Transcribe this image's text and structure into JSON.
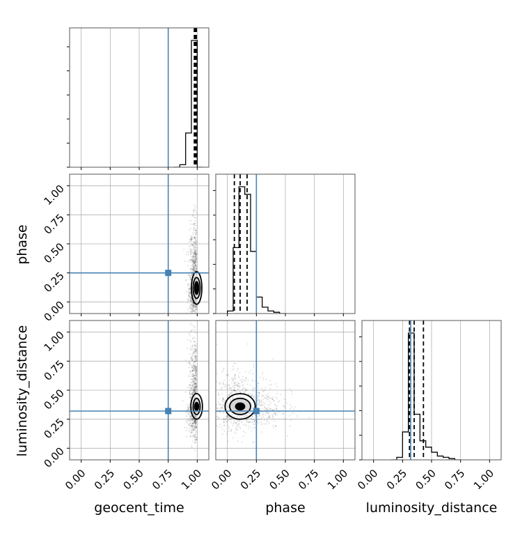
{
  "chart_data": {
    "type": "corner",
    "parameters": [
      "geocent_time",
      "phase",
      "luminosity_distance"
    ],
    "axis_range": [
      -0.1,
      1.1
    ],
    "ticks": [
      0.0,
      0.25,
      0.5,
      0.75,
      1.0
    ],
    "tick_labels": [
      "0.00",
      "0.25",
      "0.50",
      "0.75",
      "1.00"
    ],
    "grid": true,
    "truth": {
      "geocent_time": 0.75,
      "phase": 0.25,
      "luminosity_distance": 0.32
    },
    "truth_color": "#4682b4",
    "histograms": [
      {
        "parameter": "geocent_time",
        "bin_edges": [
          0.8,
          0.85,
          0.9,
          0.95,
          1.0,
          1.05
        ],
        "counts": [
          0.0,
          0.02,
          0.27,
          1.0,
          0.0
        ],
        "quantiles": [
          0.975,
          0.985,
          0.993
        ]
      },
      {
        "parameter": "phase",
        "bin_edges": [
          0.0,
          0.05,
          0.1,
          0.15,
          0.2,
          0.25,
          0.3,
          0.35,
          0.4,
          0.45,
          0.5
        ],
        "counts": [
          0.02,
          0.52,
          1.0,
          0.94,
          0.49,
          0.13,
          0.05,
          0.02,
          0.01,
          0.0
        ],
        "quantiles": [
          0.06,
          0.11,
          0.17
        ]
      },
      {
        "parameter": "luminosity_distance",
        "bin_edges": [
          0.15,
          0.2,
          0.25,
          0.3,
          0.35,
          0.4,
          0.45,
          0.5,
          0.55,
          0.6,
          0.65,
          0.7,
          0.75
        ],
        "counts": [
          0.0,
          0.02,
          0.22,
          1.0,
          0.36,
          0.15,
          0.1,
          0.06,
          0.03,
          0.02,
          0.01,
          0.0
        ],
        "quantiles": [
          0.31,
          0.35,
          0.43
        ]
      }
    ],
    "scatter_panels": [
      {
        "x": "geocent_time",
        "y": "phase",
        "center": [
          0.995,
          0.12
        ],
        "core_ellipse": {
          "rx": 0.018,
          "ry": 0.055
        },
        "contour_ellipses": [
          {
            "rx": 0.03,
            "ry": 0.09
          },
          {
            "rx": 0.045,
            "ry": 0.14
          }
        ],
        "spread": {
          "sx": 0.035,
          "sy": 0.11
        }
      },
      {
        "x": "geocent_time",
        "y": "luminosity_distance",
        "center": [
          0.995,
          0.36
        ],
        "core_ellipse": {
          "rx": 0.018,
          "ry": 0.035
        },
        "contour_ellipses": [
          {
            "rx": 0.03,
            "ry": 0.07
          },
          {
            "rx": 0.05,
            "ry": 0.11
          }
        ],
        "spread": {
          "sx": 0.035,
          "sy": 0.12
        }
      },
      {
        "x": "phase",
        "y": "luminosity_distance",
        "center": [
          0.11,
          0.36
        ],
        "core_ellipse": {
          "rx": 0.04,
          "ry": 0.03
        },
        "contour_ellipses": [
          {
            "rx": 0.09,
            "ry": 0.07
          },
          {
            "rx": 0.13,
            "ry": 0.11
          }
        ],
        "spread": {
          "sx": 0.1,
          "sy": 0.1
        }
      }
    ]
  }
}
